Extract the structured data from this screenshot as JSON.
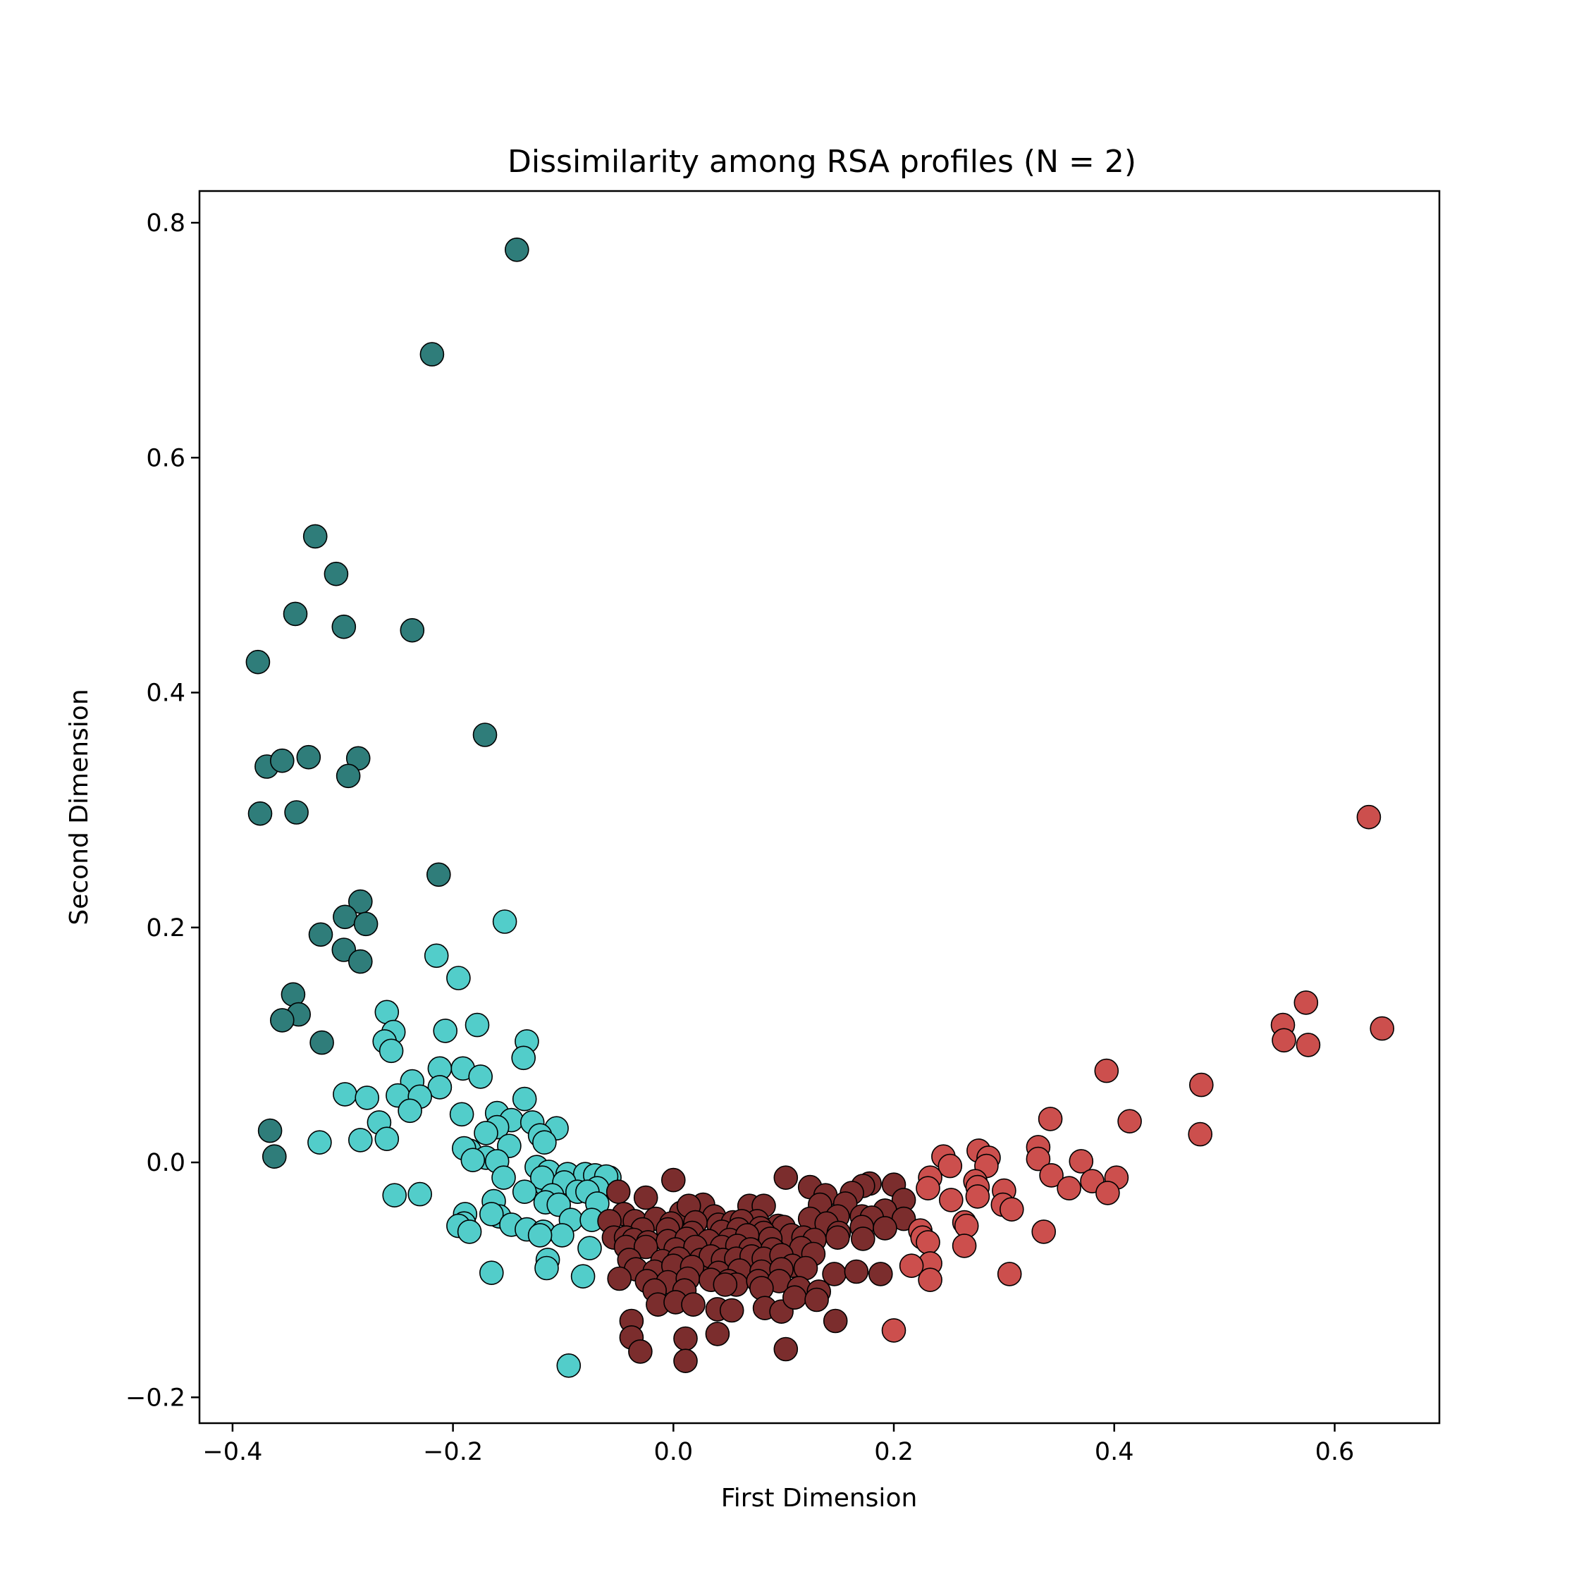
{
  "chart_data": {
    "type": "scatter",
    "title": "Dissimilarity among RSA profiles (N = 2)",
    "xlabel": "First Dimension",
    "ylabel": "Second Dimension",
    "xlim": [
      -0.43,
      0.695
    ],
    "ylim": [
      -0.222,
      0.827
    ],
    "xticks": [
      -0.4,
      -0.2,
      0.0,
      0.2,
      0.4,
      0.6
    ],
    "xtick_labels": [
      "−0.4",
      "−0.2",
      "0.0",
      "0.2",
      "0.4",
      "0.6"
    ],
    "yticks": [
      -0.2,
      0.0,
      0.2,
      0.4,
      0.6,
      0.8
    ],
    "ytick_labels": [
      "−0.2",
      "0.0",
      "0.2",
      "0.4",
      "0.6",
      "0.8"
    ],
    "grid": false,
    "legend": "none",
    "series": [
      {
        "color": "#2f7d7a",
        "points": [
          [
            -0.142,
            0.777
          ],
          [
            -0.219,
            0.688
          ],
          [
            -0.325,
            0.533
          ],
          [
            -0.306,
            0.501
          ],
          [
            -0.343,
            0.467
          ],
          [
            -0.299,
            0.456
          ],
          [
            -0.237,
            0.453
          ],
          [
            -0.377,
            0.426
          ],
          [
            -0.171,
            0.364
          ],
          [
            -0.369,
            0.337
          ],
          [
            -0.355,
            0.342
          ],
          [
            -0.331,
            0.345
          ],
          [
            -0.286,
            0.344
          ],
          [
            -0.295,
            0.329
          ],
          [
            -0.375,
            0.297
          ],
          [
            -0.342,
            0.298
          ],
          [
            -0.213,
            0.245
          ],
          [
            -0.284,
            0.222
          ],
          [
            -0.298,
            0.209
          ],
          [
            -0.279,
            0.203
          ],
          [
            -0.32,
            0.194
          ],
          [
            -0.299,
            0.181
          ],
          [
            -0.284,
            0.171
          ],
          [
            -0.345,
            0.143
          ],
          [
            -0.34,
            0.126
          ],
          [
            -0.355,
            0.121
          ],
          [
            -0.319,
            0.102
          ],
          [
            -0.366,
            0.027
          ],
          [
            -0.362,
            0.005
          ]
        ]
      },
      {
        "color": "#52cdca",
        "points": [
          [
            -0.153,
            0.205
          ],
          [
            -0.215,
            0.176
          ],
          [
            -0.195,
            0.157
          ],
          [
            -0.26,
            0.128
          ],
          [
            -0.178,
            0.117
          ],
          [
            -0.207,
            0.112
          ],
          [
            -0.254,
            0.111
          ],
          [
            -0.262,
            0.103
          ],
          [
            -0.133,
            0.103
          ],
          [
            -0.256,
            0.095
          ],
          [
            -0.136,
            0.089
          ],
          [
            -0.191,
            0.08
          ],
          [
            -0.212,
            0.08
          ],
          [
            -0.175,
            0.073
          ],
          [
            -0.237,
            0.069
          ],
          [
            -0.212,
            0.064
          ],
          [
            -0.298,
            0.058
          ],
          [
            -0.278,
            0.055
          ],
          [
            -0.25,
            0.057
          ],
          [
            -0.23,
            0.056
          ],
          [
            -0.135,
            0.054
          ],
          [
            -0.239,
            0.044
          ],
          [
            -0.192,
            0.041
          ],
          [
            -0.16,
            0.042
          ],
          [
            -0.147,
            0.036
          ],
          [
            -0.267,
            0.034
          ],
          [
            -0.128,
            0.034
          ],
          [
            -0.106,
            0.029
          ],
          [
            -0.16,
            0.03
          ],
          [
            -0.17,
            0.025
          ],
          [
            -0.121,
            0.023
          ],
          [
            -0.117,
            0.017
          ],
          [
            -0.321,
            0.017
          ],
          [
            -0.284,
            0.019
          ],
          [
            -0.26,
            0.02
          ],
          [
            -0.149,
            0.014
          ],
          [
            -0.185,
            0.01
          ],
          [
            -0.19,
            0.012
          ],
          [
            -0.17,
            0.004
          ],
          [
            -0.182,
            0.002
          ],
          [
            -0.16,
            0.001
          ],
          [
            -0.154,
            -0.013
          ],
          [
            -0.124,
            -0.004
          ],
          [
            -0.113,
            -0.008
          ],
          [
            -0.096,
            -0.01
          ],
          [
            -0.08,
            -0.01
          ],
          [
            -0.071,
            -0.011
          ],
          [
            -0.058,
            -0.013
          ],
          [
            -0.061,
            -0.012
          ],
          [
            -0.115,
            -0.02
          ],
          [
            -0.119,
            -0.013
          ],
          [
            -0.099,
            -0.017
          ],
          [
            -0.087,
            -0.025
          ],
          [
            -0.069,
            -0.022
          ],
          [
            -0.078,
            -0.025
          ],
          [
            -0.11,
            -0.028
          ],
          [
            -0.135,
            -0.025
          ],
          [
            -0.253,
            -0.028
          ],
          [
            -0.23,
            -0.027
          ],
          [
            -0.116,
            -0.034
          ],
          [
            -0.069,
            -0.035
          ],
          [
            -0.104,
            -0.036
          ],
          [
            -0.163,
            -0.033
          ],
          [
            -0.189,
            -0.044
          ],
          [
            -0.158,
            -0.046
          ],
          [
            -0.165,
            -0.044
          ],
          [
            -0.093,
            -0.049
          ],
          [
            -0.074,
            -0.049
          ],
          [
            -0.19,
            -0.052
          ],
          [
            -0.147,
            -0.053
          ],
          [
            -0.133,
            -0.057
          ],
          [
            -0.118,
            -0.059
          ],
          [
            -0.195,
            -0.054
          ],
          [
            -0.185,
            -0.059
          ],
          [
            -0.101,
            -0.062
          ],
          [
            -0.121,
            -0.062
          ],
          [
            -0.076,
            -0.073
          ],
          [
            -0.114,
            -0.083
          ],
          [
            -0.115,
            -0.09
          ],
          [
            -0.165,
            -0.094
          ],
          [
            -0.082,
            -0.097
          ],
          [
            -0.095,
            -0.173
          ]
        ]
      },
      {
        "color": "#7b2d2d",
        "points": [
          [
            0.102,
            -0.013
          ],
          [
            0.0,
            -0.015
          ],
          [
            0.124,
            -0.021
          ],
          [
            0.2,
            -0.019
          ],
          [
            0.178,
            -0.018
          ],
          [
            0.172,
            -0.02
          ],
          [
            0.162,
            -0.026
          ],
          [
            0.138,
            -0.028
          ],
          [
            0.209,
            -0.032
          ],
          [
            -0.05,
            -0.025
          ],
          [
            -0.025,
            -0.03
          ],
          [
            0.027,
            -0.036
          ],
          [
            0.069,
            -0.037
          ],
          [
            0.082,
            -0.037
          ],
          [
            0.133,
            -0.036
          ],
          [
            0.156,
            -0.035
          ],
          [
            0.192,
            -0.041
          ],
          [
            0.007,
            -0.043
          ],
          [
            -0.045,
            -0.044
          ],
          [
            -0.035,
            -0.05
          ],
          [
            0.014,
            -0.037
          ],
          [
            0.037,
            -0.046
          ],
          [
            0.041,
            -0.053
          ],
          [
            0.076,
            -0.05
          ],
          [
            0.095,
            -0.054
          ],
          [
            0.124,
            -0.048
          ],
          [
            0.149,
            -0.046
          ],
          [
            0.171,
            -0.046
          ],
          [
            0.18,
            -0.047
          ],
          [
            0.209,
            -0.048
          ],
          [
            -0.058,
            -0.05
          ],
          [
            -0.016,
            -0.048
          ],
          [
            -0.002,
            -0.052
          ],
          [
            0.02,
            -0.051
          ],
          [
            0.054,
            -0.051
          ],
          [
            0.062,
            -0.05
          ],
          [
            0.079,
            -0.056
          ],
          [
            0.1,
            -0.055
          ],
          [
            0.139,
            -0.052
          ],
          [
            0.171,
            -0.055
          ],
          [
            0.192,
            -0.056
          ],
          [
            -0.028,
            -0.057
          ],
          [
            -0.005,
            -0.057
          ],
          [
            0.017,
            -0.06
          ],
          [
            0.044,
            -0.059
          ],
          [
            0.059,
            -0.057
          ],
          [
            0.082,
            -0.06
          ],
          [
            0.107,
            -0.062
          ],
          [
            0.15,
            -0.06
          ],
          [
            -0.054,
            -0.064
          ],
          [
            -0.043,
            -0.064
          ],
          [
            -0.036,
            -0.066
          ],
          [
            -0.023,
            -0.068
          ],
          [
            -0.005,
            -0.067
          ],
          [
            0.012,
            -0.065
          ],
          [
            0.032,
            -0.067
          ],
          [
            0.051,
            -0.066
          ],
          [
            0.067,
            -0.062
          ],
          [
            0.088,
            -0.065
          ],
          [
            0.118,
            -0.064
          ],
          [
            0.128,
            -0.066
          ],
          [
            0.149,
            -0.064
          ],
          [
            0.172,
            -0.065
          ],
          [
            -0.043,
            -0.072
          ],
          [
            -0.025,
            -0.072
          ],
          [
            0.002,
            -0.074
          ],
          [
            0.02,
            -0.072
          ],
          [
            0.044,
            -0.072
          ],
          [
            0.058,
            -0.071
          ],
          [
            0.07,
            -0.074
          ],
          [
            0.09,
            -0.074
          ],
          [
            0.116,
            -0.073
          ],
          [
            0.127,
            -0.078
          ],
          [
            -0.04,
            -0.083
          ],
          [
            -0.01,
            -0.084
          ],
          [
            0.005,
            -0.082
          ],
          [
            0.025,
            -0.083
          ],
          [
            0.034,
            -0.08
          ],
          [
            0.045,
            -0.083
          ],
          [
            0.057,
            -0.082
          ],
          [
            0.071,
            -0.08
          ],
          [
            0.082,
            -0.082
          ],
          [
            0.098,
            -0.079
          ],
          [
            0.108,
            -0.088
          ],
          [
            -0.034,
            -0.091
          ],
          [
            -0.017,
            -0.093
          ],
          [
            0.0,
            -0.088
          ],
          [
            0.017,
            -0.089
          ],
          [
            0.041,
            -0.094
          ],
          [
            0.06,
            -0.092
          ],
          [
            0.08,
            -0.093
          ],
          [
            0.098,
            -0.091
          ],
          [
            0.12,
            -0.09
          ],
          [
            0.146,
            -0.095
          ],
          [
            0.166,
            -0.093
          ],
          [
            0.188,
            -0.095
          ],
          [
            -0.049,
            -0.099
          ],
          [
            -0.024,
            -0.101
          ],
          [
            -0.005,
            -0.102
          ],
          [
            0.013,
            -0.099
          ],
          [
            0.034,
            -0.1
          ],
          [
            0.05,
            -0.101
          ],
          [
            0.057,
            -0.104
          ],
          [
            0.077,
            -0.101
          ],
          [
            0.096,
            -0.101
          ],
          [
            0.114,
            -0.107
          ],
          [
            -0.017,
            -0.109
          ],
          [
            0.01,
            -0.109
          ],
          [
            0.047,
            -0.104
          ],
          [
            0.08,
            -0.107
          ],
          [
            0.132,
            -0.11
          ],
          [
            -0.014,
            -0.121
          ],
          [
            0.002,
            -0.119
          ],
          [
            0.018,
            -0.121
          ],
          [
            0.04,
            -0.125
          ],
          [
            0.053,
            -0.126
          ],
          [
            0.083,
            -0.124
          ],
          [
            0.098,
            -0.127
          ],
          [
            0.11,
            -0.115
          ],
          [
            0.13,
            -0.117
          ],
          [
            -0.038,
            -0.135
          ],
          [
            0.147,
            -0.135
          ],
          [
            -0.038,
            -0.149
          ],
          [
            0.011,
            -0.15
          ],
          [
            0.04,
            -0.146
          ],
          [
            -0.03,
            -0.161
          ],
          [
            0.102,
            -0.159
          ],
          [
            0.011,
            -0.169
          ]
        ]
      },
      {
        "color": "#cc4f4d",
        "points": [
          [
            0.631,
            0.294
          ],
          [
            0.574,
            0.136
          ],
          [
            0.553,
            0.117
          ],
          [
            0.643,
            0.114
          ],
          [
            0.554,
            0.104
          ],
          [
            0.576,
            0.1
          ],
          [
            0.393,
            0.078
          ],
          [
            0.479,
            0.066
          ],
          [
            0.342,
            0.037
          ],
          [
            0.414,
            0.035
          ],
          [
            0.478,
            0.024
          ],
          [
            0.331,
            0.013
          ],
          [
            0.277,
            0.01
          ],
          [
            0.286,
            0.004
          ],
          [
            0.245,
            0.005
          ],
          [
            0.331,
            0.003
          ],
          [
            0.37,
            0.001
          ],
          [
            0.251,
            -0.003
          ],
          [
            0.284,
            -0.003
          ],
          [
            0.233,
            -0.013
          ],
          [
            0.343,
            -0.011
          ],
          [
            0.402,
            -0.013
          ],
          [
            0.274,
            -0.016
          ],
          [
            0.38,
            -0.016
          ],
          [
            0.276,
            -0.021
          ],
          [
            0.359,
            -0.022
          ],
          [
            0.231,
            -0.022
          ],
          [
            0.3,
            -0.024
          ],
          [
            0.394,
            -0.026
          ],
          [
            0.276,
            -0.029
          ],
          [
            0.252,
            -0.032
          ],
          [
            0.299,
            -0.036
          ],
          [
            0.307,
            -0.04
          ],
          [
            0.264,
            -0.051
          ],
          [
            0.266,
            -0.054
          ],
          [
            0.224,
            -0.058
          ],
          [
            0.336,
            -0.059
          ],
          [
            0.226,
            -0.064
          ],
          [
            0.231,
            -0.068
          ],
          [
            0.264,
            -0.071
          ],
          [
            0.233,
            -0.086
          ],
          [
            0.216,
            -0.088
          ],
          [
            0.305,
            -0.095
          ],
          [
            0.233,
            -0.1
          ],
          [
            0.2,
            -0.143
          ]
        ]
      }
    ]
  }
}
